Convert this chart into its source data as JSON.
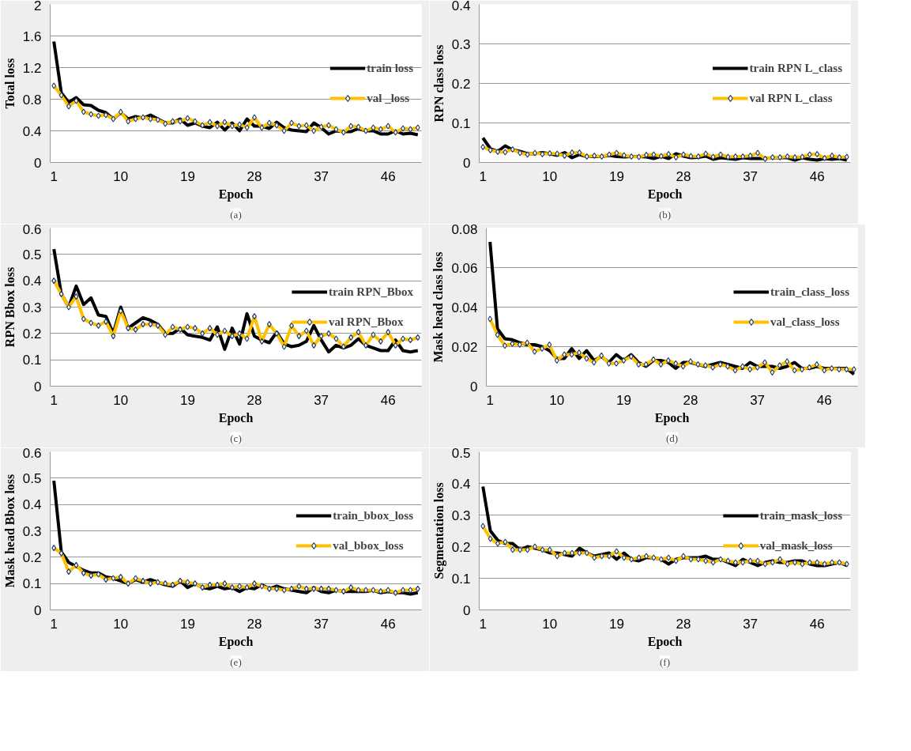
{
  "chart_data": [
    {
      "type": "line",
      "ylabel": "Total loss",
      "xlabel": "Epoch",
      "annotations": [
        "(a)"
      ],
      "x": [
        1,
        2,
        3,
        4,
        5,
        6,
        7,
        8,
        9,
        10,
        11,
        12,
        13,
        14,
        15,
        16,
        17,
        18,
        19,
        20,
        21,
        22,
        23,
        24,
        25,
        26,
        27,
        28,
        29,
        30,
        31,
        32,
        33,
        34,
        35,
        36,
        37,
        38,
        39,
        40,
        41,
        42,
        43,
        44,
        45,
        46,
        47,
        48,
        49,
        50
      ],
      "xlim": [
        0.5,
        50.5
      ],
      "xticks": [
        1,
        10,
        19,
        28,
        37,
        46
      ],
      "ylim": [
        0,
        2
      ],
      "yticks": [
        0,
        0.4,
        0.8,
        1.2,
        1.6,
        2
      ],
      "grid": "y",
      "legend": "right",
      "series": [
        {
          "name": "train loss",
          "color": "#000000",
          "marker": "none",
          "values": [
            1.53,
            0.88,
            0.76,
            0.82,
            0.73,
            0.72,
            0.66,
            0.63,
            0.55,
            0.63,
            0.55,
            0.58,
            0.56,
            0.6,
            0.55,
            0.5,
            0.5,
            0.55,
            0.47,
            0.5,
            0.46,
            0.44,
            0.51,
            0.41,
            0.5,
            0.4,
            0.55,
            0.46,
            0.46,
            0.43,
            0.51,
            0.44,
            0.41,
            0.4,
            0.39,
            0.5,
            0.44,
            0.36,
            0.4,
            0.39,
            0.39,
            0.43,
            0.4,
            0.4,
            0.36,
            0.36,
            0.4,
            0.36,
            0.37,
            0.35
          ]
        },
        {
          "name": "val _loss",
          "color": "#ffc000",
          "marker": "diamond",
          "values": [
            0.97,
            0.85,
            0.71,
            0.78,
            0.64,
            0.61,
            0.59,
            0.6,
            0.55,
            0.64,
            0.52,
            0.55,
            0.57,
            0.55,
            0.54,
            0.49,
            0.52,
            0.52,
            0.56,
            0.52,
            0.47,
            0.51,
            0.46,
            0.51,
            0.46,
            0.48,
            0.44,
            0.57,
            0.44,
            0.5,
            0.47,
            0.4,
            0.5,
            0.46,
            0.47,
            0.4,
            0.45,
            0.47,
            0.42,
            0.38,
            0.46,
            0.45,
            0.4,
            0.44,
            0.42,
            0.46,
            0.38,
            0.43,
            0.42,
            0.44
          ]
        }
      ]
    },
    {
      "type": "line",
      "ylabel": "RPN class loss",
      "xlabel": "Epoch",
      "annotations": [
        "(b)"
      ],
      "x": [
        1,
        2,
        3,
        4,
        5,
        6,
        7,
        8,
        9,
        10,
        11,
        12,
        13,
        14,
        15,
        16,
        17,
        18,
        19,
        20,
        21,
        22,
        23,
        24,
        25,
        26,
        27,
        28,
        29,
        30,
        31,
        32,
        33,
        34,
        35,
        36,
        37,
        38,
        39,
        40,
        41,
        42,
        43,
        44,
        45,
        46,
        47,
        48,
        49,
        50
      ],
      "xlim": [
        0.5,
        50.5
      ],
      "xticks": [
        1,
        10,
        19,
        28,
        37,
        46
      ],
      "ylim": [
        0,
        0.4
      ],
      "yticks": [
        0,
        0.1,
        0.2,
        0.3,
        0.4
      ],
      "grid": "y",
      "legend": "right",
      "series": [
        {
          "name": "train RPN L_class",
          "color": "#000000",
          "marker": "none",
          "values": [
            0.062,
            0.035,
            0.028,
            0.042,
            0.032,
            0.028,
            0.022,
            0.022,
            0.025,
            0.022,
            0.018,
            0.025,
            0.012,
            0.02,
            0.015,
            0.015,
            0.015,
            0.018,
            0.015,
            0.014,
            0.015,
            0.015,
            0.014,
            0.01,
            0.016,
            0.01,
            0.022,
            0.016,
            0.012,
            0.013,
            0.016,
            0.008,
            0.012,
            0.01,
            0.008,
            0.012,
            0.01,
            0.01,
            0.01,
            0.012,
            0.012,
            0.012,
            0.006,
            0.012,
            0.008,
            0.006,
            0.01,
            0.008,
            0.01,
            0.006
          ]
        },
        {
          "name": "val RPN L_class",
          "color": "#ffc000",
          "marker": "diamond",
          "values": [
            0.039,
            0.031,
            0.027,
            0.026,
            0.033,
            0.024,
            0.02,
            0.024,
            0.021,
            0.023,
            0.022,
            0.017,
            0.025,
            0.025,
            0.015,
            0.017,
            0.015,
            0.02,
            0.024,
            0.018,
            0.015,
            0.014,
            0.019,
            0.02,
            0.016,
            0.021,
            0.013,
            0.02,
            0.016,
            0.015,
            0.022,
            0.014,
            0.02,
            0.014,
            0.015,
            0.015,
            0.017,
            0.024,
            0.009,
            0.013,
            0.013,
            0.015,
            0.013,
            0.014,
            0.02,
            0.021,
            0.011,
            0.017,
            0.013,
            0.014
          ]
        }
      ]
    },
    {
      "type": "line",
      "ylabel": "RPN Bbox loss",
      "xlabel": "Epoch",
      "annotations": [
        "(c)"
      ],
      "x": [
        1,
        2,
        3,
        4,
        5,
        6,
        7,
        8,
        9,
        10,
        11,
        12,
        13,
        14,
        15,
        16,
        17,
        18,
        19,
        20,
        21,
        22,
        23,
        24,
        25,
        26,
        27,
        28,
        29,
        30,
        31,
        32,
        33,
        34,
        35,
        36,
        37,
        38,
        39,
        40,
        41,
        42,
        43,
        44,
        45,
        46,
        47,
        48,
        49,
        50
      ],
      "xlim": [
        0.5,
        50.5
      ],
      "xticks": [
        1,
        10,
        19,
        28,
        37,
        46
      ],
      "ylim": [
        0,
        0.6
      ],
      "yticks": [
        0,
        0.1,
        0.2,
        0.3,
        0.4,
        0.5,
        0.6
      ],
      "grid": "y",
      "legend": "right",
      "series": [
        {
          "name": "train RPN_Bbox",
          "color": "#000000",
          "marker": "none",
          "values": [
            0.52,
            0.35,
            0.3,
            0.38,
            0.31,
            0.335,
            0.27,
            0.265,
            0.2,
            0.3,
            0.22,
            0.24,
            0.26,
            0.25,
            0.235,
            0.2,
            0.2,
            0.22,
            0.195,
            0.19,
            0.185,
            0.175,
            0.225,
            0.14,
            0.22,
            0.16,
            0.275,
            0.19,
            0.175,
            0.165,
            0.205,
            0.16,
            0.15,
            0.155,
            0.17,
            0.23,
            0.175,
            0.13,
            0.155,
            0.145,
            0.155,
            0.18,
            0.155,
            0.145,
            0.135,
            0.135,
            0.175,
            0.135,
            0.13,
            0.135
          ]
        },
        {
          "name": "val RPN_Bbox",
          "color": "#ffc000",
          "marker": "diamond",
          "values": [
            0.4,
            0.35,
            0.3,
            0.34,
            0.255,
            0.24,
            0.23,
            0.245,
            0.19,
            0.285,
            0.22,
            0.215,
            0.235,
            0.235,
            0.23,
            0.195,
            0.225,
            0.215,
            0.225,
            0.22,
            0.2,
            0.22,
            0.195,
            0.21,
            0.19,
            0.2,
            0.18,
            0.265,
            0.17,
            0.235,
            0.2,
            0.15,
            0.23,
            0.19,
            0.21,
            0.155,
            0.19,
            0.2,
            0.18,
            0.15,
            0.185,
            0.205,
            0.155,
            0.195,
            0.17,
            0.205,
            0.155,
            0.18,
            0.175,
            0.185
          ]
        }
      ]
    },
    {
      "type": "line",
      "ylabel": "Mask head class loss",
      "xlabel": "Epoch",
      "annotations": [
        "(d)"
      ],
      "x": [
        1,
        2,
        3,
        4,
        5,
        6,
        7,
        8,
        9,
        10,
        11,
        12,
        13,
        14,
        15,
        16,
        17,
        18,
        19,
        20,
        21,
        22,
        23,
        24,
        25,
        26,
        27,
        28,
        29,
        30,
        31,
        32,
        33,
        34,
        35,
        36,
        37,
        38,
        39,
        40,
        41,
        42,
        43,
        44,
        45,
        46,
        47,
        48,
        49,
        50
      ],
      "xlim": [
        0.5,
        50.5
      ],
      "xticks": [
        1,
        10,
        19,
        28,
        37,
        46
      ],
      "ylim": [
        0,
        0.08
      ],
      "yticks": [
        0,
        {
          "value": 0.02,
          "label": "0.02"
        },
        {
          "value": 0.04,
          "label": "0.04"
        },
        {
          "value": 0.06,
          "label": "0.06"
        },
        {
          "value": 0.08,
          "label": "0.08"
        }
      ],
      "grid": "y",
      "legend": "right",
      "series": [
        {
          "name": "train_class_loss",
          "color": "#000000",
          "marker": "none",
          "values": [
            0.073,
            0.029,
            0.024,
            0.0235,
            0.022,
            0.021,
            0.021,
            0.02,
            0.018,
            0.014,
            0.014,
            0.019,
            0.014,
            0.018,
            0.013,
            0.015,
            0.012,
            0.016,
            0.013,
            0.016,
            0.012,
            0.01,
            0.013,
            0.013,
            0.012,
            0.009,
            0.012,
            0.012,
            0.011,
            0.01,
            0.011,
            0.012,
            0.011,
            0.01,
            0.009,
            0.012,
            0.01,
            0.01,
            0.01,
            0.009,
            0.01,
            0.012,
            0.009,
            0.009,
            0.01,
            0.009,
            0.009,
            0.009,
            0.009,
            0.006
          ]
        },
        {
          "name": "val_class_loss",
          "color": "#ffc000",
          "marker": "diamond",
          "values": [
            0.034,
            0.026,
            0.0205,
            0.0215,
            0.021,
            0.022,
            0.0175,
            0.019,
            0.021,
            0.013,
            0.016,
            0.016,
            0.017,
            0.014,
            0.012,
            0.0155,
            0.0115,
            0.0115,
            0.013,
            0.015,
            0.011,
            0.011,
            0.0135,
            0.011,
            0.013,
            0.0115,
            0.01,
            0.0125,
            0.011,
            0.0105,
            0.0095,
            0.011,
            0.01,
            0.008,
            0.01,
            0.0085,
            0.0095,
            0.012,
            0.007,
            0.0105,
            0.0125,
            0.008,
            0.0085,
            0.0095,
            0.011,
            0.008,
            0.009,
            0.0085,
            0.0085,
            0.0085
          ]
        }
      ]
    },
    {
      "type": "line",
      "ylabel": "Mask head Bbox loss",
      "xlabel": "Epoch",
      "annotations": [
        "(e)"
      ],
      "x": [
        1,
        2,
        3,
        4,
        5,
        6,
        7,
        8,
        9,
        10,
        11,
        12,
        13,
        14,
        15,
        16,
        17,
        18,
        19,
        20,
        21,
        22,
        23,
        24,
        25,
        26,
        27,
        28,
        29,
        30,
        31,
        32,
        33,
        34,
        35,
        36,
        37,
        38,
        39,
        40,
        41,
        42,
        43,
        44,
        45,
        46,
        47,
        48,
        49,
        50
      ],
      "xlim": [
        0.5,
        50.5
      ],
      "xticks": [
        1,
        10,
        19,
        28,
        37,
        46
      ],
      "ylim": [
        0,
        0.6
      ],
      "yticks": [
        0,
        0.1,
        0.2,
        0.3,
        0.4,
        0.5,
        0.6
      ],
      "grid": "y",
      "legend": "right",
      "series": [
        {
          "name": "train_bbox_loss",
          "color": "#000000",
          "marker": "none",
          "values": [
            0.49,
            0.22,
            0.18,
            0.165,
            0.15,
            0.14,
            0.14,
            0.125,
            0.12,
            0.11,
            0.1,
            0.115,
            0.105,
            0.115,
            0.105,
            0.095,
            0.09,
            0.11,
            0.085,
            0.1,
            0.085,
            0.08,
            0.09,
            0.08,
            0.085,
            0.07,
            0.085,
            0.08,
            0.095,
            0.08,
            0.09,
            0.08,
            0.075,
            0.07,
            0.065,
            0.085,
            0.07,
            0.065,
            0.075,
            0.07,
            0.07,
            0.07,
            0.07,
            0.075,
            0.065,
            0.07,
            0.065,
            0.065,
            0.06,
            0.065
          ]
        },
        {
          "name": "val_bbox_loss",
          "color": "#ffc000",
          "marker": "diamond",
          "values": [
            0.235,
            0.215,
            0.145,
            0.17,
            0.14,
            0.13,
            0.135,
            0.115,
            0.12,
            0.125,
            0.1,
            0.12,
            0.11,
            0.1,
            0.105,
            0.1,
            0.095,
            0.11,
            0.105,
            0.1,
            0.085,
            0.095,
            0.095,
            0.1,
            0.085,
            0.09,
            0.085,
            0.1,
            0.09,
            0.08,
            0.08,
            0.075,
            0.08,
            0.09,
            0.08,
            0.08,
            0.08,
            0.08,
            0.075,
            0.07,
            0.085,
            0.075,
            0.075,
            0.075,
            0.07,
            0.075,
            0.065,
            0.075,
            0.075,
            0.08
          ]
        }
      ]
    },
    {
      "type": "line",
      "ylabel": "Segmentation loss",
      "xlabel": "Epoch",
      "annotations": [
        "(f)"
      ],
      "x": [
        1,
        2,
        3,
        4,
        5,
        6,
        7,
        8,
        9,
        10,
        11,
        12,
        13,
        14,
        15,
        16,
        17,
        18,
        19,
        20,
        21,
        22,
        23,
        24,
        25,
        26,
        27,
        28,
        29,
        30,
        31,
        32,
        33,
        34,
        35,
        36,
        37,
        38,
        39,
        40,
        41,
        42,
        43,
        44,
        45,
        46,
        47,
        48,
        49,
        50
      ],
      "xlim": [
        0.5,
        50.5
      ],
      "xticks": [
        1,
        10,
        19,
        28,
        37,
        46
      ],
      "ylim": [
        0,
        0.5
      ],
      "yticks": [
        0,
        0.1,
        0.2,
        0.3,
        0.4,
        0.5
      ],
      "grid": "y",
      "legend": "right",
      "series": [
        {
          "name": "train_mask_loss",
          "color": "#000000",
          "marker": "none",
          "values": [
            0.39,
            0.25,
            0.22,
            0.21,
            0.21,
            0.19,
            0.2,
            0.195,
            0.19,
            0.18,
            0.18,
            0.175,
            0.17,
            0.195,
            0.18,
            0.17,
            0.175,
            0.18,
            0.16,
            0.18,
            0.16,
            0.155,
            0.165,
            0.165,
            0.16,
            0.145,
            0.16,
            0.165,
            0.165,
            0.165,
            0.17,
            0.16,
            0.16,
            0.15,
            0.14,
            0.16,
            0.15,
            0.14,
            0.15,
            0.155,
            0.15,
            0.15,
            0.155,
            0.155,
            0.145,
            0.14,
            0.14,
            0.145,
            0.15,
            0.14
          ]
        },
        {
          "name": "val_mask_loss",
          "color": "#ffc000",
          "marker": "diamond",
          "values": [
            0.265,
            0.225,
            0.21,
            0.215,
            0.19,
            0.19,
            0.19,
            0.2,
            0.19,
            0.19,
            0.17,
            0.18,
            0.18,
            0.18,
            0.18,
            0.165,
            0.17,
            0.17,
            0.185,
            0.165,
            0.16,
            0.165,
            0.17,
            0.165,
            0.16,
            0.165,
            0.155,
            0.17,
            0.16,
            0.16,
            0.155,
            0.15,
            0.16,
            0.155,
            0.15,
            0.15,
            0.155,
            0.155,
            0.145,
            0.15,
            0.16,
            0.145,
            0.15,
            0.145,
            0.15,
            0.15,
            0.145,
            0.15,
            0.15,
            0.145
          ]
        }
      ]
    }
  ]
}
